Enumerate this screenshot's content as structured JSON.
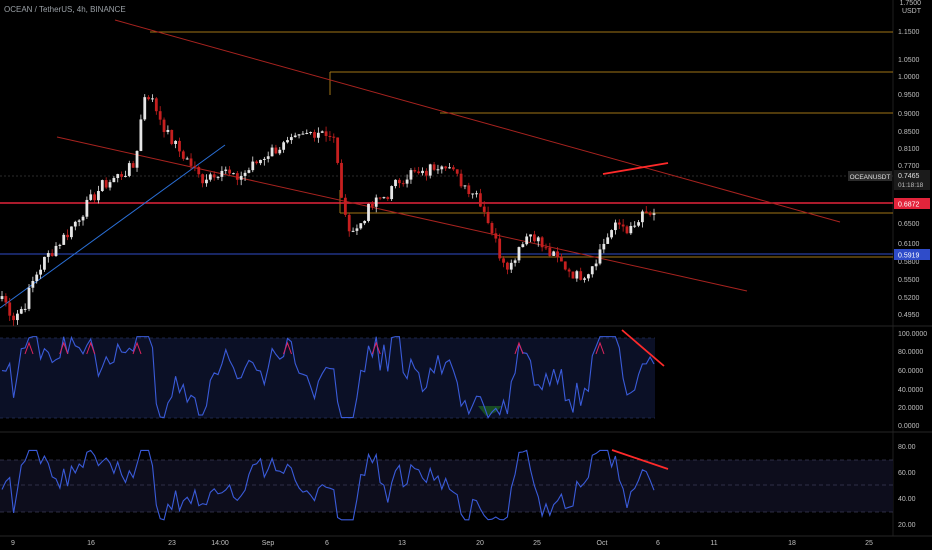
{
  "header": {
    "symbol": "OCEAN / TetherUS, 4h, BINANCE"
  },
  "price_axis": {
    "currency": "USDT",
    "top_label": "1.7500",
    "ticks": [
      "1.1500",
      "1.0500",
      "1.0000",
      "0.9500",
      "0.9000",
      "0.8500",
      "0.8100",
      "0.7700",
      "0.6500",
      "0.6100",
      "0.5800",
      "0.5500",
      "0.5200",
      "0.4950"
    ]
  },
  "time_axis": {
    "ticks": [
      "9",
      "16",
      "23",
      "14:00",
      "Sep",
      "6",
      "13",
      "20",
      "25",
      "Oct",
      "6",
      "11",
      "18",
      "25"
    ]
  },
  "badges": {
    "last": {
      "symbol": "OCEANUSDT",
      "price": "0.7465",
      "countdown": "01:18:18"
    },
    "red_level": "0.6872",
    "blue_level": "0.5919"
  },
  "colors": {
    "up": "#e6e6e6",
    "down": "#c61f1f",
    "level_red": "#e3243b",
    "level_blue": "#2f4cc9",
    "level_orange": "#a07416",
    "channel": "#a8231f",
    "indicator": "#3a5bd9"
  },
  "chart_data": [
    {
      "type": "candlestick",
      "title": "OCEAN / TetherUS, 4h, BINANCE",
      "x_ticks": [
        "9",
        "16",
        "23",
        "14:00",
        "Sep",
        "6",
        "13",
        "20",
        "25",
        "Oct",
        "6",
        "11",
        "18",
        "25"
      ],
      "ylim": [
        0.46,
        1.22
      ],
      "y_scale": "log",
      "levels": [
        {
          "value": 0.6872,
          "color": "#e3243b",
          "labelled": true
        },
        {
          "value": 0.5919,
          "color": "#2f4cc9",
          "labelled": true
        }
      ],
      "approx_close_path": [
        0.56,
        0.52,
        0.54,
        0.6,
        0.64,
        0.67,
        0.7,
        0.74,
        0.78,
        0.82,
        0.84,
        0.86,
        0.88,
        1.15,
        1.07,
        0.98,
        0.93,
        0.89,
        0.84,
        0.86,
        0.87,
        0.84,
        0.86,
        0.89,
        0.92,
        0.94,
        0.95,
        0.97,
        0.99,
        1.0,
        0.97,
        0.73,
        0.7,
        0.75,
        0.78,
        0.8,
        0.84,
        0.86,
        0.85,
        0.88,
        0.9,
        0.85,
        0.82,
        0.8,
        0.73,
        0.65,
        0.62,
        0.68,
        0.7,
        0.66,
        0.64,
        0.62,
        0.6,
        0.61,
        0.65,
        0.7,
        0.72,
        0.7,
        0.74,
        0.7465
      ]
    },
    {
      "type": "line",
      "panel": "oscillator 1",
      "ylim": [
        0,
        100
      ],
      "y_ticks": [
        "100.0000",
        "80.0000",
        "60.0000",
        "40.0000",
        "20.0000",
        "0.0000"
      ],
      "band": [
        20,
        80
      ]
    },
    {
      "type": "line",
      "panel": "oscillator 2",
      "ylim": [
        15,
        85
      ],
      "y_ticks": [
        "80.00",
        "60.00",
        "40.00",
        "20.00"
      ],
      "band": [
        30,
        70
      ]
    }
  ]
}
